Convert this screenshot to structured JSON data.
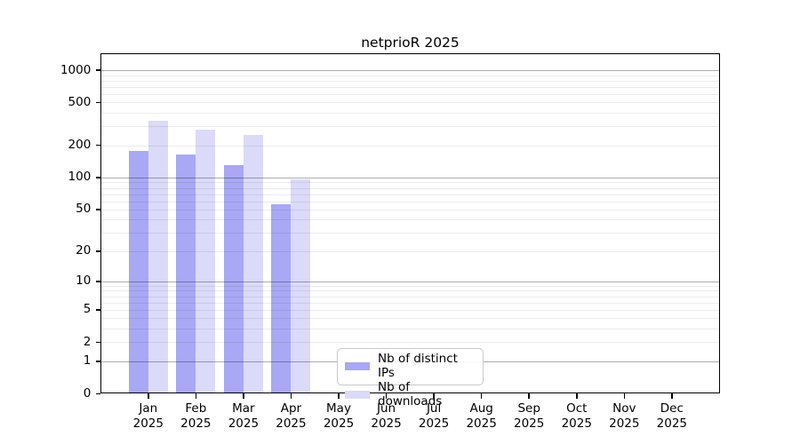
{
  "chart_data": {
    "type": "bar",
    "title": "netprioR 2025",
    "year": "2025",
    "months": [
      "Jan",
      "Feb",
      "Mar",
      "Apr",
      "May",
      "Jun",
      "Jul",
      "Aug",
      "Sep",
      "Oct",
      "Nov",
      "Dec"
    ],
    "y_ticks": [
      0,
      1,
      2,
      5,
      10,
      20,
      50,
      100,
      200,
      500,
      1000
    ],
    "y_scale": "log1p",
    "ylim": [
      0,
      1000
    ],
    "grid": "both",
    "legend_position": "lower-center",
    "series": [
      {
        "name": "Nb of distinct IPs",
        "color": "#a8a8f4",
        "values": [
          176,
          165,
          131,
          56,
          null,
          null,
          null,
          null,
          null,
          null,
          null,
          null
        ]
      },
      {
        "name": "Nb of downloads",
        "color": "#dbdaf8",
        "values": [
          340,
          280,
          250,
          97,
          null,
          null,
          null,
          null,
          null,
          null,
          null,
          null
        ]
      }
    ]
  }
}
